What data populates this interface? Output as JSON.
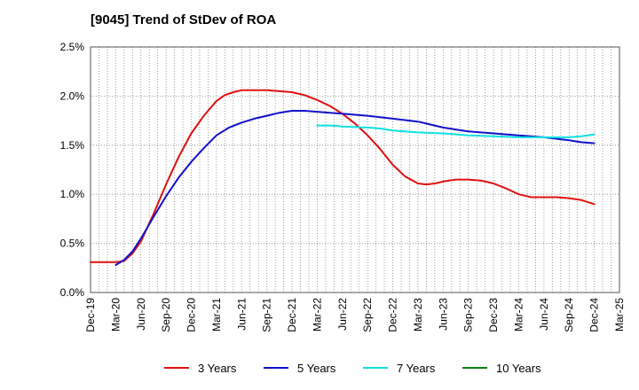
{
  "chart_data": {
    "type": "line",
    "title": "[9045]  Trend of StDev of ROA",
    "xlabel": "",
    "ylabel": "",
    "ylim": [
      0,
      2.5
    ],
    "yticks": [
      0,
      0.5,
      1.0,
      1.5,
      2.0,
      2.5
    ],
    "ytick_labels": [
      "0.0%",
      "0.5%",
      "1.0%",
      "1.5%",
      "2.0%",
      "2.5%"
    ],
    "xticks": [
      "Dec-19",
      "Mar-20",
      "Jun-20",
      "Sep-20",
      "Dec-20",
      "Mar-21",
      "Jun-21",
      "Sep-21",
      "Dec-21",
      "Mar-22",
      "Jun-22",
      "Sep-22",
      "Dec-22",
      "Mar-23",
      "Jun-23",
      "Sep-23",
      "Dec-23",
      "Mar-24",
      "Jun-24",
      "Sep-24",
      "Dec-24",
      "Mar-25"
    ],
    "grid": "dotted",
    "legend_position": "bottom",
    "series": [
      {
        "name": "3 Years",
        "color": "#e01010",
        "x": [
          0,
          0.33,
          0.67,
          1,
          1.33,
          1.67,
          2,
          2.5,
          3,
          3.5,
          4,
          4.5,
          5,
          5.33,
          5.67,
          6,
          6.5,
          7,
          7.5,
          8,
          8.5,
          9,
          9.5,
          10,
          10.5,
          11,
          11.5,
          12,
          12.5,
          13,
          13.33,
          13.67,
          14,
          14.5,
          15,
          15.5,
          16,
          16.5,
          17,
          17.5,
          18,
          18.5,
          19,
          19.5,
          20
        ],
        "y": [
          0.31,
          0.31,
          0.31,
          0.31,
          0.32,
          0.4,
          0.52,
          0.8,
          1.1,
          1.38,
          1.62,
          1.8,
          1.95,
          2.01,
          2.04,
          2.06,
          2.06,
          2.06,
          2.05,
          2.04,
          2.01,
          1.96,
          1.9,
          1.82,
          1.72,
          1.6,
          1.46,
          1.3,
          1.18,
          1.11,
          1.1,
          1.11,
          1.13,
          1.15,
          1.15,
          1.14,
          1.11,
          1.06,
          1.0,
          0.97,
          0.97,
          0.97,
          0.96,
          0.94,
          0.9
        ]
      },
      {
        "name": "5 Years",
        "color": "#1010cc",
        "x": [
          1,
          1.33,
          1.67,
          2,
          2.5,
          3,
          3.5,
          4,
          4.5,
          5,
          5.5,
          6,
          6.5,
          7,
          7.5,
          8,
          8.5,
          9,
          9.5,
          10,
          11,
          12,
          13,
          13.5,
          14,
          14.5,
          15,
          15.5,
          16,
          17,
          18,
          19,
          19.5,
          20
        ],
        "y": [
          0.28,
          0.33,
          0.42,
          0.55,
          0.77,
          0.98,
          1.17,
          1.33,
          1.47,
          1.6,
          1.68,
          1.73,
          1.77,
          1.8,
          1.83,
          1.85,
          1.85,
          1.84,
          1.83,
          1.82,
          1.8,
          1.77,
          1.74,
          1.71,
          1.68,
          1.66,
          1.64,
          1.63,
          1.62,
          1.6,
          1.58,
          1.55,
          1.53,
          1.52
        ]
      },
      {
        "name": "7 Years",
        "color": "#10e0e0",
        "x": [
          9,
          9.5,
          10,
          11,
          11.5,
          12,
          13,
          14,
          15,
          16,
          17,
          18,
          19,
          19.5,
          20
        ],
        "y": [
          1.7,
          1.7,
          1.69,
          1.68,
          1.67,
          1.65,
          1.63,
          1.62,
          1.6,
          1.59,
          1.58,
          1.58,
          1.58,
          1.59,
          1.61
        ]
      },
      {
        "name": "10 Years",
        "color": "#108010",
        "x": [],
        "y": []
      }
    ]
  }
}
